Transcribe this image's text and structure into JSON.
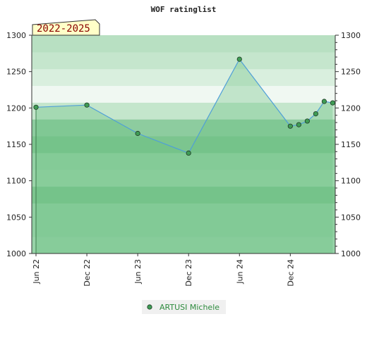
{
  "chart_data": {
    "type": "area",
    "title": "WOF ratinglist",
    "badge": "2022-2025",
    "xlabel": "",
    "ylabel": "",
    "x_tick_labels": [
      "Jun 22",
      "Dec 22",
      "Jun 23",
      "Dec 23",
      "Jun 24",
      "Dec 24"
    ],
    "x_tick_positions": [
      0,
      6,
      12,
      18,
      24,
      30
    ],
    "xlim": [
      -0.5,
      35.3
    ],
    "ylim": [
      1000,
      1300
    ],
    "y_ticks": [
      1000,
      1050,
      1100,
      1150,
      1200,
      1250,
      1300
    ],
    "y_tick_labels": [
      "1000",
      "1050",
      "1100",
      "1150",
      "1200",
      "1250",
      "1300"
    ],
    "y_axis_left": true,
    "y_axis_right": true,
    "band_colors": [
      "#97d3a8",
      "#8fcfa1",
      "#8fcfa1",
      "#7cc58f",
      "#98d4a8",
      "#92d1a4",
      "#7cc58f",
      "#8dcc9f",
      "#c4e6cc",
      "#f0f8f2",
      "#d9efde",
      "#c5e6cd",
      "#b8e0c2"
    ],
    "series": [
      {
        "name": "ARTUSI Michele",
        "color": "#4f9fd8",
        "marker_color": "#3f9c55",
        "x": [
          0,
          6,
          12,
          18,
          24,
          30,
          31,
          32,
          33,
          34,
          35
        ],
        "values": [
          1201,
          1204,
          1165,
          1138,
          1267,
          1175,
          1177,
          1182,
          1192,
          1209,
          1207
        ]
      }
    ]
  }
}
